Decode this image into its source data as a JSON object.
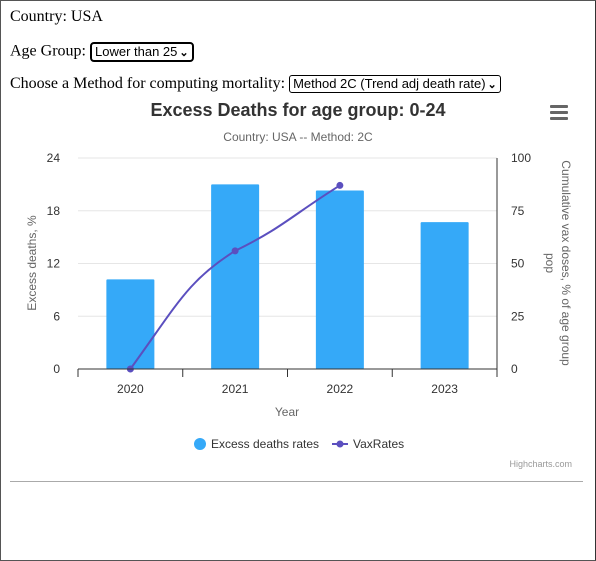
{
  "form": {
    "country_label": "Country:",
    "country_value": "USA",
    "age_label": "Age Group:",
    "age_value": "Lower than 25",
    "method_label": "Choose a Method for computing mortality:",
    "method_value": "Method 2C (Trend adj death rate)"
  },
  "chart": {
    "menu_icon": "hamburger-menu-icon",
    "credits": "Highcharts.com"
  },
  "chart_data": {
    "type": "bar",
    "title": "Excess Deaths for age group: 0-24",
    "subtitle": "Country: USA -- Method: 2C",
    "xlabel": "Year",
    "ylabel": "Excess deaths, %",
    "y2label": "Cumulative vax doses, % of age group pop",
    "categories": [
      "2020",
      "2021",
      "2022",
      "2023"
    ],
    "ylim": [
      0,
      24
    ],
    "yticks": [
      "0",
      "6",
      "12",
      "18",
      "24"
    ],
    "y2lim": [
      0,
      100
    ],
    "y2ticks": [
      "0",
      "25",
      "50",
      "75",
      "100"
    ],
    "series": [
      {
        "name": "Excess deaths rates",
        "type": "bar",
        "axis": "left",
        "color": "#35a9f8",
        "values": [
          10.2,
          21.0,
          20.3,
          16.7
        ]
      },
      {
        "name": "VaxRates",
        "type": "line",
        "axis": "right",
        "color": "#5b4fbf",
        "values": [
          0,
          56,
          87,
          null
        ]
      }
    ],
    "legend": "bottom-center"
  }
}
